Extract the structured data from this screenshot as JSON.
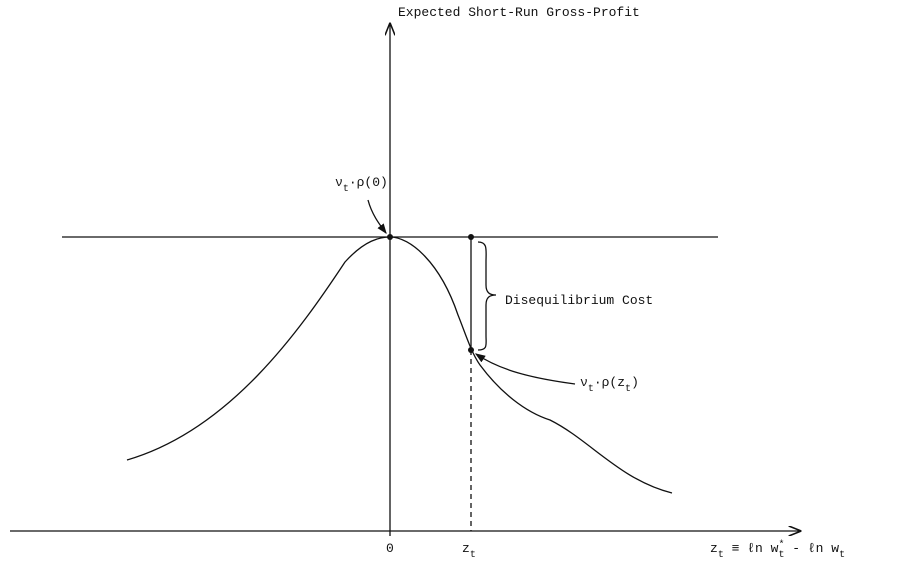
{
  "axis": {
    "y_title": "Expected Short-Run Gross-Profit",
    "x_title": {
      "parts": [
        "z",
        "t",
        " ≡ ℓn w",
        "*",
        "t",
        " - ℓn w",
        "t"
      ]
    },
    "x_ticks": [
      "0",
      {
        "parts": [
          "z",
          "t"
        ]
      }
    ]
  },
  "annotations": {
    "peak": {
      "parts": [
        "ν",
        "t",
        "·ρ(0)"
      ]
    },
    "point": {
      "parts": [
        "ν",
        "t",
        "·ρ(z",
        "t",
        ")"
      ]
    },
    "brace": "Disequilibrium Cost"
  }
}
